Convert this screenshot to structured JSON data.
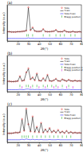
{
  "chart_data": [
    {
      "type": "line",
      "title": "(a)",
      "x_label": "2θ(°)",
      "y_label": "Intensity (a.u.)",
      "x": [
        10,
        12,
        14,
        16,
        18,
        20,
        22,
        24,
        26,
        28,
        30,
        32,
        34,
        36,
        38,
        40,
        42,
        44,
        46,
        48,
        50,
        52,
        54,
        56,
        58,
        60,
        62,
        64,
        66,
        68,
        70,
        72,
        74,
        76,
        78,
        80
      ],
      "xlim": [
        10,
        80
      ],
      "xticks": [
        20,
        30,
        40,
        50,
        60,
        70,
        80
      ],
      "ylim": [
        -30,
        110
      ],
      "tick_labels": "x",
      "legend": "top-right",
      "series": [
        {
          "name": "Yobs",
          "type": "scatter",
          "marker": "circle",
          "color": "#e00000",
          "values": [
            6,
            6,
            5,
            5,
            5,
            6,
            6,
            7,
            8,
            10,
            100,
            12,
            22,
            9,
            7,
            7,
            8,
            16,
            7,
            6,
            6,
            7,
            8,
            13,
            6,
            6,
            6,
            11,
            6,
            5,
            5,
            7,
            5,
            5,
            6,
            5
          ]
        },
        {
          "name": "Ycalc",
          "type": "line",
          "color": "#000000",
          "values": [
            6,
            6,
            5,
            5,
            5,
            6,
            6,
            7,
            8,
            10,
            98,
            12,
            21,
            9,
            7,
            7,
            8,
            15,
            7,
            6,
            6,
            7,
            8,
            12,
            6,
            6,
            6,
            10,
            6,
            5,
            5,
            7,
            5,
            5,
            6,
            5
          ]
        },
        {
          "name": "Yobs-Ycalc",
          "type": "line",
          "color": "#0000ff",
          "values": [
            -20,
            -20,
            -20,
            -20,
            -20,
            -20,
            -20,
            -20,
            -20,
            -20,
            -18,
            -20,
            -19,
            -20,
            -20,
            -20,
            -20,
            -19,
            -20,
            -20,
            -20,
            -20,
            -20,
            -19,
            -20,
            -20,
            -20,
            -19,
            -20,
            -20,
            -20,
            -20,
            -20,
            -20,
            -20,
            -20
          ]
        },
        {
          "name": "Bragg position",
          "type": "bragg",
          "color": "#00a000",
          "x": [
            28.5,
            30,
            34,
            44,
            50,
            56,
            60,
            64,
            70,
            74
          ],
          "values": [
            -8,
            -8,
            -8,
            -8,
            -8,
            -8,
            -8,
            -8,
            -8,
            -8
          ]
        }
      ]
    },
    {
      "type": "line",
      "title": "(b)",
      "x_label": "2θ(°)",
      "y_label": "Intensity (a.u.)",
      "x": [
        10,
        12,
        14,
        16,
        18,
        20,
        22,
        24,
        26,
        28,
        30,
        32,
        34,
        36,
        38,
        40,
        42,
        44,
        46,
        48,
        50,
        52,
        54,
        56,
        58,
        60,
        62,
        64,
        66,
        68,
        70,
        72,
        74,
        76,
        78,
        80
      ],
      "xlim": [
        10,
        80
      ],
      "xticks": [
        20,
        30,
        40,
        50,
        60,
        70,
        80
      ],
      "ylim": [
        -30,
        110
      ],
      "tick_labels": "x",
      "legend": "top-right",
      "series": [
        {
          "name": "Yobs",
          "type": "scatter",
          "marker": "circle",
          "color": "#e00000",
          "values": [
            10,
            10,
            9,
            9,
            10,
            11,
            30,
            12,
            14,
            45,
            60,
            18,
            25,
            14,
            40,
            13,
            12,
            22,
            12,
            35,
            12,
            11,
            14,
            20,
            12,
            11,
            18,
            14,
            11,
            16,
            12,
            11,
            13,
            11,
            12,
            11
          ]
        },
        {
          "name": "Ycalc",
          "type": "line",
          "color": "#000000",
          "values": [
            10,
            10,
            9,
            9,
            10,
            11,
            29,
            12,
            14,
            43,
            58,
            18,
            24,
            14,
            39,
            13,
            12,
            21,
            12,
            34,
            12,
            11,
            14,
            19,
            12,
            11,
            17,
            14,
            11,
            15,
            12,
            11,
            13,
            11,
            12,
            11
          ]
        },
        {
          "name": "Yobs-Ycalc",
          "type": "line",
          "color": "#0000ff",
          "values": [
            -22,
            -22,
            -22,
            -22,
            -22,
            -22,
            -21,
            -22,
            -22,
            -20,
            -20,
            -22,
            -21,
            -22,
            -21,
            -22,
            -22,
            -21,
            -22,
            -21,
            -22,
            -22,
            -22,
            -21,
            -22,
            -22,
            -21,
            -22,
            -22,
            -21,
            -22,
            -22,
            -22,
            -22,
            -22,
            -22
          ]
        },
        {
          "name": "Bragg position 1",
          "type": "bragg",
          "color": "#00a000",
          "x": [
            22,
            28,
            30,
            34,
            38,
            44,
            48,
            52,
            56,
            62,
            68
          ],
          "values": [
            -8,
            -8,
            -8,
            -8,
            -8,
            -8,
            -8,
            -8,
            -8,
            -8,
            -8
          ]
        },
        {
          "name": "Bragg position 2",
          "type": "bragg",
          "color": "#cc00cc",
          "x": [
            24,
            32,
            40,
            46,
            54,
            58,
            66,
            72
          ],
          "values": [
            -13,
            -13,
            -13,
            -13,
            -13,
            -13,
            -13,
            -13
          ]
        }
      ]
    },
    {
      "type": "line",
      "title": "(c)",
      "x_label": "2θ(°)",
      "y_label": "Intensity (a.u.)",
      "x": [
        10,
        12,
        14,
        16,
        18,
        20,
        22,
        24,
        26,
        28,
        30,
        32,
        34,
        36,
        38,
        40,
        42,
        44,
        46,
        48,
        50,
        52,
        54,
        56,
        58,
        60,
        62,
        64,
        66,
        68,
        70,
        72,
        74,
        76,
        78,
        80
      ],
      "xlim": [
        10,
        80
      ],
      "xticks": [
        20,
        30,
        40,
        50,
        60,
        70,
        80
      ],
      "ylim": [
        -30,
        110
      ],
      "tick_labels": "x",
      "legend": "top-right",
      "series": [
        {
          "name": "Yobs",
          "type": "scatter",
          "marker": "circle",
          "color": "#e00000",
          "values": [
            5,
            5,
            5,
            6,
            8,
            7,
            9,
            60,
            15,
            100,
            40,
            12,
            70,
            10,
            30,
            9,
            45,
            8,
            20,
            10,
            25,
            9,
            15,
            8,
            18,
            7,
            12,
            6,
            14,
            6,
            10,
            6,
            8,
            6,
            7,
            6
          ]
        },
        {
          "name": "Ycalc",
          "type": "line",
          "color": "#000000",
          "values": [
            5,
            5,
            5,
            6,
            8,
            7,
            9,
            58,
            15,
            97,
            39,
            12,
            68,
            10,
            29,
            9,
            44,
            8,
            20,
            10,
            24,
            9,
            15,
            8,
            17,
            7,
            12,
            6,
            14,
            6,
            10,
            6,
            8,
            6,
            7,
            6
          ]
        },
        {
          "name": "Yobs-Ycalc",
          "type": "line",
          "color": "#0000ff",
          "values": [
            -20,
            -20,
            -20,
            -20,
            -20,
            -20,
            -20,
            -18,
            -20,
            -17,
            -19,
            -20,
            -18,
            -20,
            -19,
            -20,
            -19,
            -20,
            -20,
            -20,
            -19,
            -20,
            -20,
            -20,
            -19,
            -20,
            -20,
            -20,
            -20,
            -20,
            -20,
            -20,
            -20,
            -20,
            -20,
            -20
          ]
        },
        {
          "name": "Bragg position",
          "type": "bragg",
          "color": "#00a000",
          "x": [
            24,
            26,
            28,
            30,
            34,
            38,
            42,
            46,
            50,
            54,
            58,
            62,
            66,
            70
          ],
          "values": [
            -8,
            -8,
            -8,
            -8,
            -8,
            -8,
            -8,
            -8,
            -8,
            -8,
            -8,
            -8,
            -8,
            -8
          ]
        }
      ]
    }
  ]
}
